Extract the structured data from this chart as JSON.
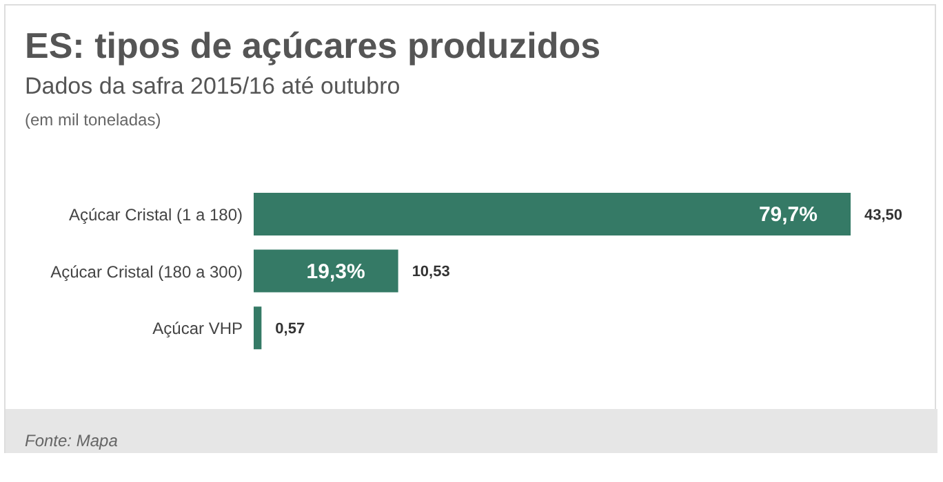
{
  "chart_data": {
    "type": "bar",
    "orientation": "horizontal",
    "title": "ES: tipos de açúcares produzidos",
    "subtitle": "Dados da safra 2015/16 até outubro",
    "categories": [
      "Açúcar Cristal (1 a 180)",
      "Açúcar Cristal (180 a 300)",
      "Açúcar VHP"
    ],
    "values": [
      43.5,
      10.53,
      0.57
    ],
    "color": "#357a66",
    "value_labels": [
      "43,50",
      "10,53",
      "0,57"
    ],
    "annotations": [
      "(em mil toneladas)",
      "Fonte: Mapa",
      {
        "text": "79,7%",
        "x": 43.5,
        "y": "Açúcar Cristal (1 a 180)"
      },
      {
        "text": "19,3%",
        "x": 10.53,
        "y": "Açúcar Cristal (180 a 300)"
      }
    ],
    "legend": false,
    "grid": false
  }
}
